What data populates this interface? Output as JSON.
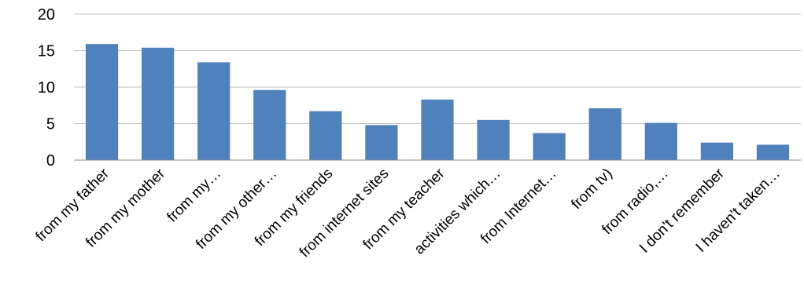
{
  "chart_data": {
    "type": "bar",
    "title": "",
    "xlabel": "",
    "ylabel": "",
    "ylim": [
      0,
      20
    ],
    "yticks": [
      0,
      5,
      10,
      15,
      20
    ],
    "grid": true,
    "bar_color": "#4f81bd",
    "categories": [
      "from my father",
      "from my mother",
      "from my…",
      "from my other…",
      "from my friends",
      "from internet sites",
      "from my teacher",
      "activities which…",
      "from Internet…",
      "from tv)",
      "from radio,…",
      "I don't remember",
      "I haven't taken…"
    ],
    "values": [
      15.9,
      15.4,
      13.4,
      9.6,
      6.7,
      4.8,
      8.3,
      5.5,
      3.7,
      7.1,
      5.1,
      2.4,
      2.1
    ]
  }
}
